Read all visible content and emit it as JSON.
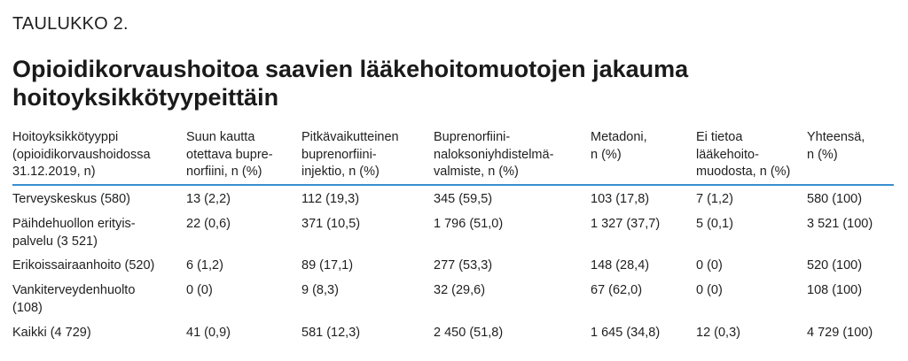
{
  "table_label": "TAULUKKO 2.",
  "title": "Opioidikorvaushoitoa saavien lääkehoitomuotojen jakauma hoitoyksikkötyypeittäin",
  "columns": [
    "Hoitoyksikkötyyppi\n(opioidikorvaushoidossa\n31.12.2019, n)",
    "Suun kautta\notettava bupre-\nnorfiini, n (%)",
    "Pitkävaikutteinen\nbuprenorfiini-\ninjektio, n (%)",
    "Buprenorfiini-\nnaloksoniyhdistelmä-\nvalmiste, n (%)",
    "Metadoni,\nn (%)",
    "Ei tietoa\nlääkehoito-\nmuodosta, n (%)",
    "Yhteensä,\nn (%)"
  ],
  "rows": [
    {
      "cells": [
        "Terveyskeskus (580)",
        "13 (2,2)",
        "112 (19,3)",
        "345 (59,5)",
        "103 (17,8)",
        "7 (1,2)",
        "580 (100)"
      ]
    },
    {
      "cells": [
        "Päihdehuollon erityis-\npalvelu (3 521)",
        "22 (0,6)",
        "371 (10,5)",
        "1 796 (51,0)",
        "1 327 (37,7)",
        "5 (0,1)",
        "3 521 (100)"
      ]
    },
    {
      "cells": [
        "Erikoissairaanhoito (520)",
        "6 (1,2)",
        "89 (17,1)",
        "277 (53,3)",
        "148 (28,4)",
        "0 (0)",
        "520 (100)"
      ]
    },
    {
      "cells": [
        "Vankiterveydenhuolto\n(108)",
        "0 (0)",
        "9 (8,3)",
        "32 (29,6)",
        "67 (62,0)",
        "0 (0)",
        "108 (100)"
      ]
    },
    {
      "cells": [
        "Kaikki (4 729)",
        "41 (0,9)",
        "581 (12,3)",
        "2 450 (51,8)",
        "1 645 (34,8)",
        "12 (0,3)",
        "4 729 (100)"
      ]
    }
  ]
}
